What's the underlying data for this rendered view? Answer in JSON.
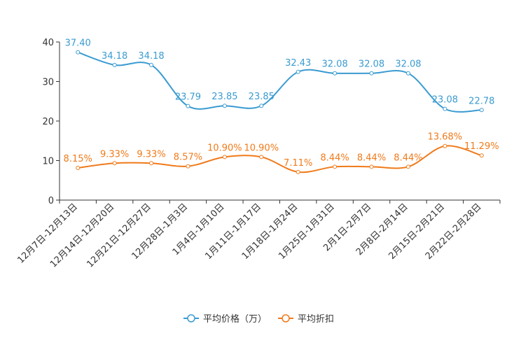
{
  "chart_data": {
    "type": "line",
    "title": "",
    "xlabel": "",
    "ylabel": "",
    "ylim": [
      0,
      40
    ],
    "yticks": [
      0,
      10,
      20,
      30,
      40
    ],
    "grid": false,
    "legend_position": "bottom-center",
    "categories": [
      "12月7日-12月13日",
      "12月14日-12月20日",
      "12月21日-12月27日",
      "12月28日-1月3日",
      "1月4日-1月10日",
      "1月11日-1月17日",
      "1月18日-1月24日",
      "1月25日-1月31日",
      "2月1日-2月7日",
      "2月8日-2月14日",
      "2月15日-2月21日",
      "2月22日-2月28日"
    ],
    "series": [
      {
        "name": "平均价格（万）",
        "color": "#3a9bd1",
        "values": [
          37.4,
          34.18,
          34.18,
          23.79,
          23.85,
          23.85,
          32.43,
          32.08,
          32.08,
          32.08,
          23.08,
          22.78
        ],
        "labels": [
          "37.40",
          "34.18",
          "34.18",
          "23.79",
          "23.85",
          "23.85",
          "32.43",
          "32.08",
          "32.08",
          "32.08",
          "23.08",
          "22.78"
        ]
      },
      {
        "name": "平均折扣",
        "color": "#f07a1a",
        "values": [
          8.15,
          9.33,
          9.33,
          8.57,
          10.9,
          10.9,
          7.11,
          8.44,
          8.44,
          8.44,
          13.68,
          11.29
        ],
        "labels": [
          "8.15%",
          "9.33%",
          "9.33%",
          "8.57%",
          "10.90%",
          "10.90%",
          "7.11%",
          "8.44%",
          "8.44%",
          "8.44%",
          "13.68%",
          "11.29%"
        ]
      }
    ]
  }
}
